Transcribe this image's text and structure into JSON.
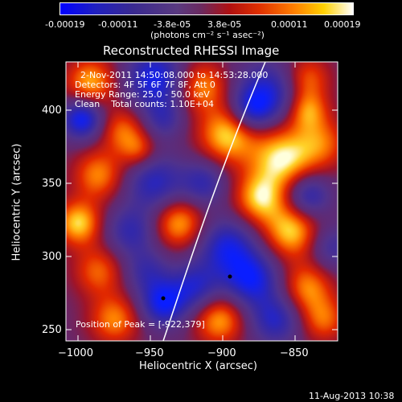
{
  "colorbar": {
    "ticks": [
      "-0.00019",
      "-0.00011",
      "-3.8e-05",
      "3.8e-05",
      "0.00011",
      "0.00019"
    ],
    "unit": "(photons cm⁻² s⁻¹ asec⁻²)"
  },
  "title": "Reconstructed RHESSI Image",
  "info": {
    "time": "2-Nov-2011 14:50:08.000 to 14:53:28.000",
    "detectors": "Detectors: 4F 5F 6F 7F 8F, Att 0",
    "energy": "Energy Range: 25.0 - 50.0 keV",
    "clean": "Clean    Total counts: 1.10E+04",
    "peak": "Position of Peak = [-922,379]"
  },
  "axes": {
    "xlabel": "Heliocentric X (arcsec)",
    "ylabel": "Heliocentric Y (arcsec)",
    "xticks": [
      "−1000",
      "−950",
      "−900",
      "−850"
    ],
    "yticks": [
      "250",
      "300",
      "350",
      "400"
    ]
  },
  "footer": {
    "date": "11-Aug-2013 10:38"
  },
  "colors": {
    "background": "#000000",
    "text": "#ffffff"
  }
}
